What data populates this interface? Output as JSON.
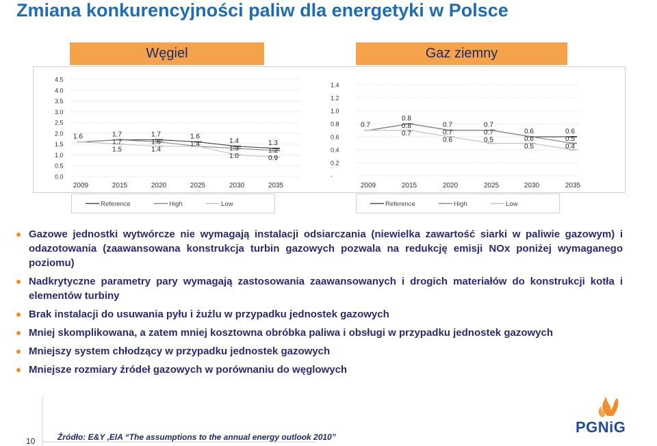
{
  "title": "Zmiana konkurencyjności paliw dla energetyki w Polsce",
  "headers": {
    "left": "Węgiel",
    "right": "Gaz ziemny"
  },
  "chart_data": [
    {
      "type": "line",
      "yticks": [
        "4.5",
        "4.0",
        "3.5",
        "3.0",
        "2.5",
        "2.0",
        "1.5",
        "1.0",
        "0.5",
        "0.0"
      ],
      "ylim": [
        0,
        4.5
      ],
      "x": [
        "2009",
        "2015",
        "2020",
        "2025",
        "2030",
        "2035"
      ],
      "series": [
        {
          "name": "Reference",
          "values": [
            1.6,
            1.7,
            1.7,
            1.6,
            1.4,
            1.3
          ],
          "color": "#4a4a4a"
        },
        {
          "name": "High",
          "values": [
            1.6,
            1.7,
            1.6,
            1.4,
            1.3,
            1.2
          ],
          "color": "#8a8a8a"
        },
        {
          "name": "Low",
          "values": [
            1.6,
            1.5,
            1.4,
            1.4,
            1.0,
            0.9
          ],
          "color": "#c4c4c4"
        }
      ],
      "labels": [
        [
          {
            "t": "1.6",
            "s": 0,
            "i": 0
          }
        ],
        [
          {
            "t": "1.7",
            "s": 0,
            "i": 1
          },
          {
            "t": "1.7",
            "s": 1,
            "i": 1
          },
          {
            "t": "1.5",
            "s": 2,
            "i": 1
          }
        ],
        [
          {
            "t": "1.7",
            "s": 0,
            "i": 2
          },
          {
            "t": "1.6",
            "s": 1,
            "i": 2
          },
          {
            "t": "1.4",
            "s": 2,
            "i": 2
          }
        ],
        [
          {
            "t": "1.6",
            "s": 0,
            "i": 3
          },
          {
            "t": "1.4",
            "s": 1,
            "i": 3
          }
        ],
        [
          {
            "t": "1.4",
            "s": 0,
            "i": 4
          },
          {
            "t": "1.3",
            "s": 1,
            "i": 4
          },
          {
            "t": "1.0",
            "s": 2,
            "i": 4
          }
        ],
        [
          {
            "t": "1.3",
            "s": 0,
            "i": 5
          },
          {
            "t": "1.2",
            "s": 1,
            "i": 5
          },
          {
            "t": "0.9",
            "s": 2,
            "i": 5
          }
        ]
      ],
      "legend": [
        "Reference",
        "High",
        "Low"
      ]
    },
    {
      "type": "line",
      "yticks": [
        "1.4",
        "1.2",
        "1.0",
        "0.8",
        "0.6",
        "0.4",
        "0.2",
        "-"
      ],
      "ylim": [
        0,
        1.4
      ],
      "x": [
        "2009",
        "2015",
        "2020",
        "2025",
        "2030",
        "2035"
      ],
      "series": [
        {
          "name": "Reference",
          "values": [
            0.7,
            0.8,
            0.7,
            0.7,
            0.6,
            0.6
          ],
          "color": "#4a4a4a"
        },
        {
          "name": "High",
          "values": [
            0.7,
            0.8,
            0.7,
            0.7,
            0.6,
            0.5
          ],
          "color": "#8a8a8a"
        },
        {
          "name": "Low",
          "values": [
            0.7,
            0.7,
            0.6,
            0.5,
            0.5,
            0.4
          ],
          "color": "#c4c4c4"
        }
      ],
      "labels": [
        [
          {
            "t": "0.7",
            "s": 0,
            "i": 0
          }
        ],
        [
          {
            "t": "0.8",
            "s": 0,
            "i": 1
          },
          {
            "t": "0.8",
            "s": 1,
            "i": 1
          },
          {
            "t": "0.7",
            "s": 2,
            "i": 1
          }
        ],
        [
          {
            "t": "0.7",
            "s": 0,
            "i": 2
          },
          {
            "t": "0.7",
            "s": 1,
            "i": 2
          },
          {
            "t": "0.6",
            "s": 2,
            "i": 2
          }
        ],
        [
          {
            "t": "0.7",
            "s": 0,
            "i": 3
          },
          {
            "t": "0.7",
            "s": 1,
            "i": 3
          },
          {
            "t": "0.5",
            "s": 2,
            "i": 3
          }
        ],
        [
          {
            "t": "0.6",
            "s": 0,
            "i": 4
          },
          {
            "t": "0.6",
            "s": 1,
            "i": 4
          },
          {
            "t": "0.5",
            "s": 2,
            "i": 4
          }
        ],
        [
          {
            "t": "0.6",
            "s": 0,
            "i": 5
          },
          {
            "t": "0.5",
            "s": 1,
            "i": 5
          },
          {
            "t": "0.4",
            "s": 2,
            "i": 5
          }
        ]
      ],
      "legend": [
        "Reference",
        "High",
        "Low"
      ]
    }
  ],
  "bullets": [
    "Gazowe jednostki wytwórcze nie wymagają instalacji odsiarczania (niewielka zawartość siarki w paliwie gazowym) i odazotowania (zaawansowana konstrukcja turbin gazowych pozwala na redukcję emisji NOx poniżej wymaganego poziomu)",
    "Nadkrytyczne parametry pary wymagają zastosowania zaawansowanych i drogich materiałów do konstrukcji kotła i elementów turbiny",
    "Brak instalacji do usuwania pyłu i żużlu w przypadku jednostek gazowych",
    "Mniej skomplikowana, a zatem mniej kosztowna obróbka paliwa i obsługi w przypadku jednostek gazowych",
    "Mniejszy system chłodzący w przypadku jednostek gazowych",
    "Mniejsze rozmiary źródeł gazowych w porównaniu do węglowych"
  ],
  "footer": {
    "page_number": "10",
    "source": "Źródło: E&Y ,EIA  “The assumptions to the annual energy outlook 2010”",
    "logo_text": "PGNiG"
  },
  "colors": {
    "title": "#1e6db4",
    "header_bg": "#f5a34a",
    "bullet": "#f08c2a",
    "text": "#2a2a6e"
  }
}
